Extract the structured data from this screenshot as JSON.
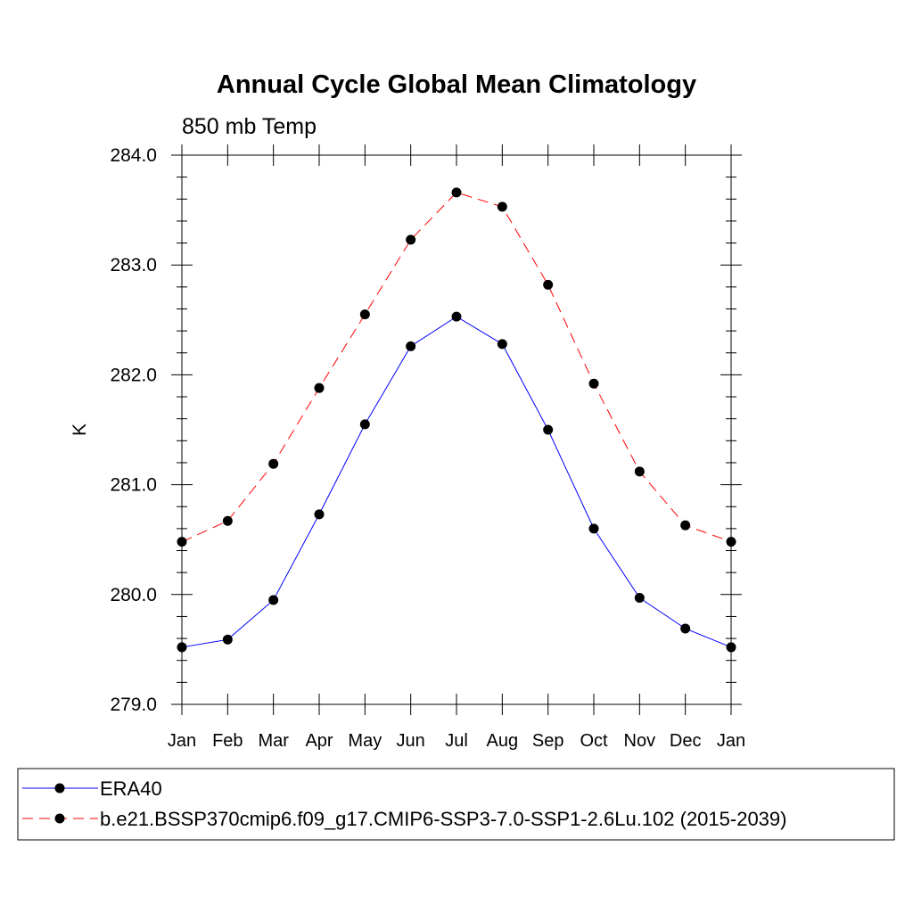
{
  "chart_data": {
    "type": "line",
    "title": "Annual Cycle Global Mean Climatology",
    "subtitle": "850 mb Temp",
    "xlabel": "",
    "ylabel": "K",
    "categories": [
      "Jan",
      "Feb",
      "Mar",
      "Apr",
      "May",
      "Jun",
      "Jul",
      "Aug",
      "Sep",
      "Oct",
      "Nov",
      "Dec",
      "Jan"
    ],
    "ylim": [
      279.0,
      284.0
    ],
    "yticks": [
      "279.0",
      "280.0",
      "281.0",
      "282.0",
      "283.0",
      "284.0"
    ],
    "grid": false,
    "legend_position": "bottom",
    "series": [
      {
        "name": "ERA40",
        "color": "#0000ff",
        "style": "solid",
        "values": [
          279.52,
          279.59,
          279.95,
          280.73,
          281.55,
          282.26,
          282.53,
          282.28,
          281.5,
          280.6,
          279.97,
          279.69,
          279.52
        ]
      },
      {
        "name": "b.e21.BSSP370cmip6.f09_g17.CMIP6-SSP3-7.0-SSP1-2.6Lu.102 (2015-2039)",
        "color": "#ff0000",
        "style": "dashed",
        "values": [
          280.48,
          280.67,
          281.19,
          281.88,
          282.55,
          283.23,
          283.66,
          283.53,
          282.82,
          281.92,
          281.12,
          280.63,
          280.48
        ]
      }
    ]
  }
}
